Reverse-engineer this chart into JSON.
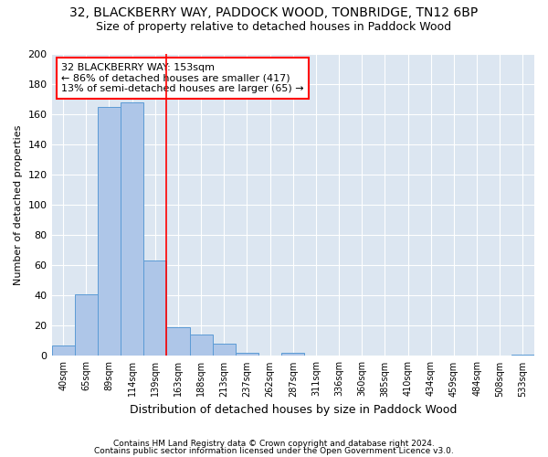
{
  "title1": "32, BLACKBERRY WAY, PADDOCK WOOD, TONBRIDGE, TN12 6BP",
  "title2": "Size of property relative to detached houses in Paddock Wood",
  "xlabel": "Distribution of detached houses by size in Paddock Wood",
  "ylabel": "Number of detached properties",
  "categories": [
    "40sqm",
    "65sqm",
    "89sqm",
    "114sqm",
    "139sqm",
    "163sqm",
    "188sqm",
    "213sqm",
    "237sqm",
    "262sqm",
    "287sqm",
    "311sqm",
    "336sqm",
    "360sqm",
    "385sqm",
    "410sqm",
    "434sqm",
    "459sqm",
    "484sqm",
    "508sqm",
    "533sqm"
  ],
  "values": [
    7,
    41,
    165,
    168,
    63,
    19,
    14,
    8,
    2,
    0,
    2,
    0,
    0,
    0,
    0,
    0,
    0,
    0,
    0,
    0,
    1
  ],
  "bar_color": "#aec6e8",
  "bar_edge_color": "#5b9bd5",
  "vline_x": 4.5,
  "vline_color": "red",
  "annotation_text": "32 BLACKBERRY WAY: 153sqm\n← 86% of detached houses are smaller (417)\n13% of semi-detached houses are larger (65) →",
  "annotation_box_color": "#ffffff",
  "annotation_box_edge": "red",
  "ylim": [
    0,
    200
  ],
  "yticks": [
    0,
    20,
    40,
    60,
    80,
    100,
    120,
    140,
    160,
    180,
    200
  ],
  "background_color": "#dce6f1",
  "footer1": "Contains HM Land Registry data © Crown copyright and database right 2024.",
  "footer2": "Contains public sector information licensed under the Open Government Licence v3.0.",
  "title1_fontsize": 10,
  "title2_fontsize": 9,
  "xlabel_fontsize": 9,
  "ylabel_fontsize": 8,
  "annotation_fontsize": 8,
  "footer_fontsize": 6.5
}
